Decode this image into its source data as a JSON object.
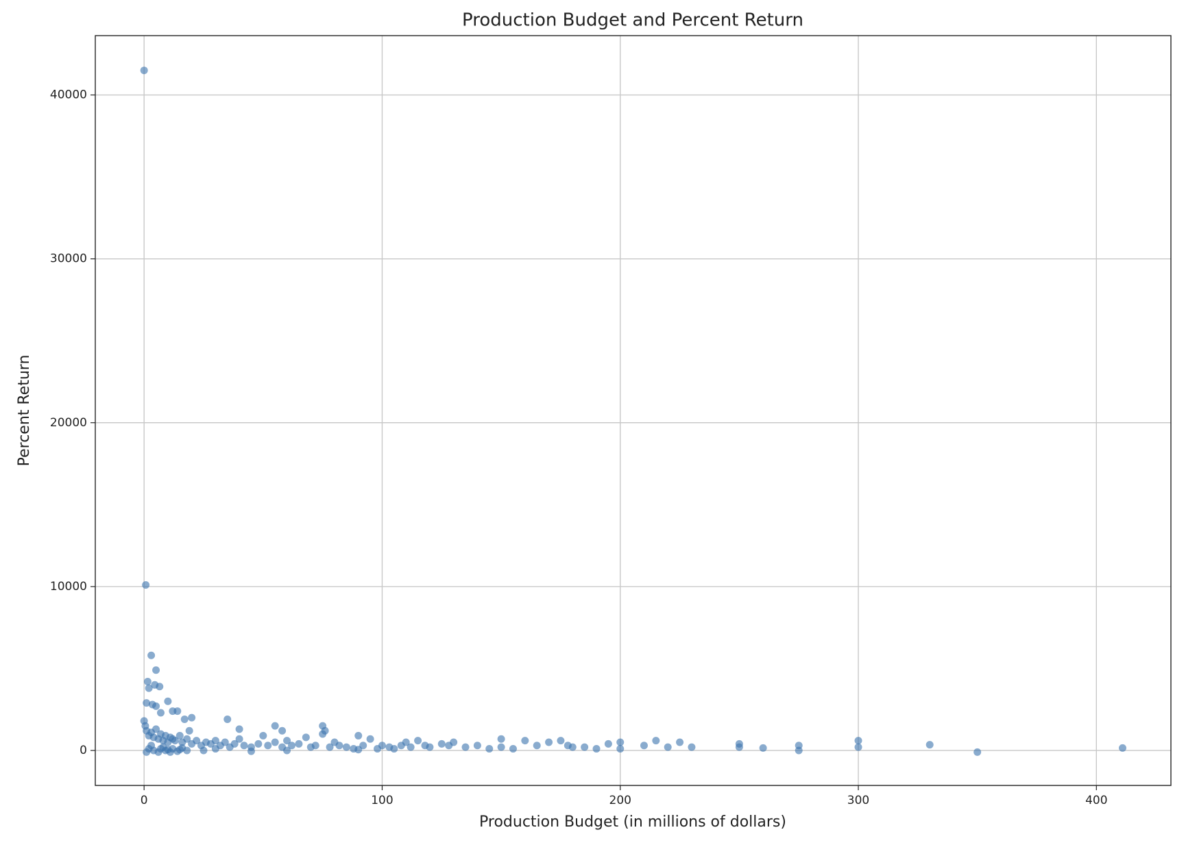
{
  "chart_data": {
    "type": "scatter",
    "title": "Production Budget and Percent Return",
    "x_label": "Production Budget (in millions of dollars)",
    "y_label": "Percent Return",
    "color": "#3b73ad",
    "grid": true,
    "xlim": [
      -20.5,
      431.3
    ],
    "ylim": [
      -2135,
      43620
    ],
    "xticks": [
      0,
      100,
      200,
      300,
      400
    ],
    "yticks": [
      0,
      10000,
      20000,
      30000,
      40000
    ],
    "x": [
      0,
      0.7,
      3,
      5,
      6.5,
      1.5,
      2,
      4.5,
      10,
      1,
      3.5,
      5,
      12,
      14,
      7,
      17,
      20,
      35,
      55,
      75,
      76,
      58,
      40,
      19,
      0,
      0.5,
      1,
      2,
      3,
      4,
      5,
      6,
      7,
      8,
      9,
      10,
      11,
      12,
      13,
      15,
      16,
      18,
      20,
      22,
      24,
      26,
      28,
      30,
      32,
      34,
      36,
      38,
      40,
      42,
      45,
      48,
      50,
      52,
      55,
      58,
      60,
      62,
      65,
      68,
      70,
      72,
      75,
      78,
      80,
      82,
      85,
      88,
      90,
      92,
      95,
      98,
      100,
      103,
      105,
      108,
      110,
      112,
      115,
      118,
      120,
      125,
      128,
      130,
      135,
      140,
      145,
      150,
      150,
      155,
      160,
      165,
      170,
      175,
      178,
      180,
      185,
      190,
      195,
      200,
      200,
      210,
      215,
      220,
      225,
      230,
      250,
      250,
      260,
      275,
      275,
      300,
      300,
      330,
      350,
      411,
      2,
      4,
      6,
      8,
      10,
      12,
      14,
      16,
      18,
      3,
      7,
      11,
      15,
      25,
      30,
      45,
      60,
      90,
      1,
      9
    ],
    "y": [
      41500,
      10100,
      5800,
      4900,
      3900,
      4200,
      3800,
      4000,
      3000,
      2900,
      2800,
      2700,
      2400,
      2400,
      2300,
      1900,
      2000,
      1900,
      1500,
      1500,
      1200,
      1200,
      1300,
      1200,
      1800,
      1500,
      1200,
      900,
      1100,
      800,
      1300,
      700,
      1000,
      600,
      900,
      500,
      800,
      700,
      600,
      900,
      500,
      700,
      400,
      600,
      300,
      500,
      400,
      600,
      300,
      500,
      200,
      400,
      700,
      300,
      200,
      400,
      900,
      300,
      500,
      200,
      600,
      300,
      400,
      800,
      200,
      300,
      1000,
      200,
      500,
      300,
      200,
      100,
      900,
      300,
      700,
      100,
      300,
      200,
      100,
      300,
      500,
      200,
      600,
      300,
      200,
      400,
      300,
      500,
      200,
      300,
      100,
      700,
      200,
      100,
      600,
      300,
      500,
      600,
      300,
      200,
      200,
      100,
      400,
      500,
      100,
      300,
      600,
      200,
      500,
      200,
      400,
      200,
      150,
      300,
      0,
      600,
      200,
      350,
      -100,
      150,
      100,
      0,
      -100,
      200,
      50,
      100,
      -50,
      150,
      0,
      300,
      100,
      -100,
      50,
      0,
      100,
      -50,
      0,
      50,
      -100,
      0
    ]
  }
}
